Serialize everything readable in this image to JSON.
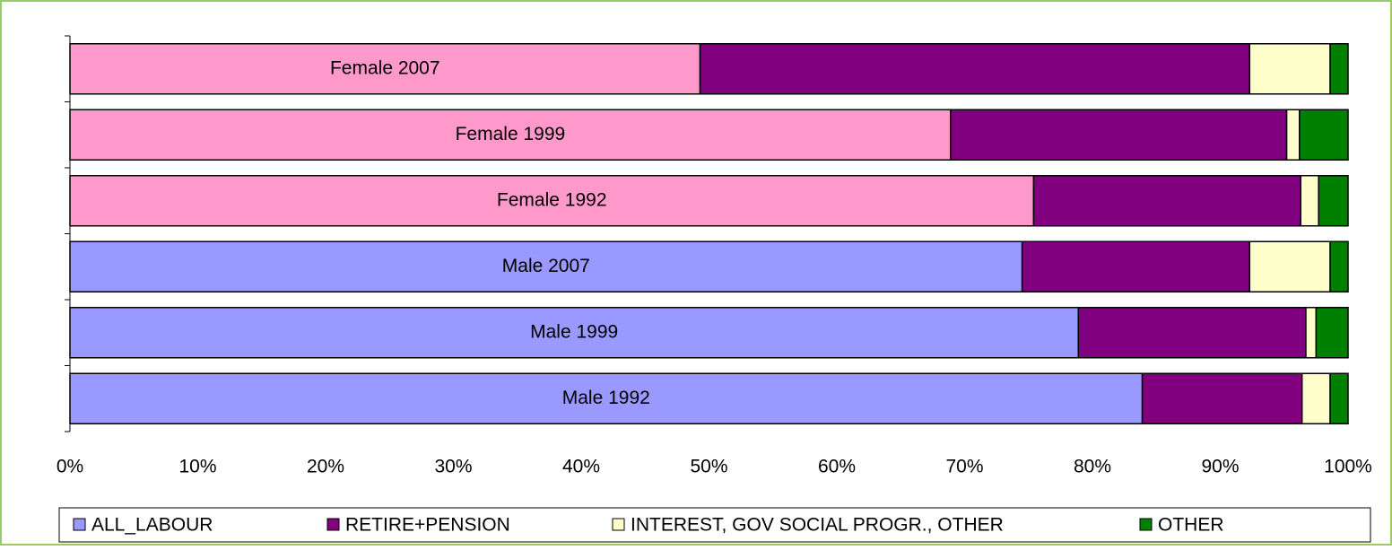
{
  "chart_data": {
    "type": "stacked-bar-horizontal",
    "categories": [
      "Female 2007",
      "Female 1999",
      "Female 1992",
      "Male 2007",
      "Male 1999",
      "Male 1992"
    ],
    "series": [
      {
        "name": "ALL_LABOUR",
        "color": "#9999ff",
        "point_colors": [
          "#ff99cc",
          "#ff99cc",
          "#ff99cc",
          "#9999ff",
          "#9999ff",
          "#9999ff"
        ],
        "values": [
          49.3,
          68.9,
          75.4,
          74.5,
          78.9,
          83.9
        ]
      },
      {
        "name": "RETIRE+PENSION",
        "color": "#800080",
        "values": [
          43.0,
          26.3,
          20.9,
          17.8,
          17.8,
          12.5
        ]
      },
      {
        "name": "INTEREST, GOV SOCIAL PROGR., OTHER",
        "color": "#ffffcc",
        "values": [
          6.3,
          1.0,
          1.4,
          6.3,
          0.8,
          2.2
        ]
      },
      {
        "name": "OTHER",
        "color": "#008000",
        "values": [
          1.4,
          3.8,
          2.3,
          1.4,
          2.5,
          1.4
        ]
      }
    ],
    "xlim": [
      0,
      100
    ],
    "xticks": [
      {
        "value": 0,
        "label": "0%"
      },
      {
        "value": 10,
        "label": "10%"
      },
      {
        "value": 20,
        "label": "20%"
      },
      {
        "value": 30,
        "label": "30%"
      },
      {
        "value": 40,
        "label": "40%"
      },
      {
        "value": 50,
        "label": "50%"
      },
      {
        "value": 60,
        "label": "60%"
      },
      {
        "value": 70,
        "label": "70%"
      },
      {
        "value": 80,
        "label": "80%"
      },
      {
        "value": 90,
        "label": "90%"
      },
      {
        "value": 100,
        "label": "100%"
      }
    ],
    "grid": false
  }
}
